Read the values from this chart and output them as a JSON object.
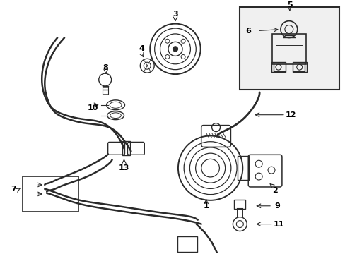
{
  "background_color": "#ffffff",
  "line_color": "#2a2a2a",
  "label_color": "#000000",
  "box_bg": "#eeeeee",
  "figsize": [
    4.89,
    3.6
  ],
  "dpi": 100
}
